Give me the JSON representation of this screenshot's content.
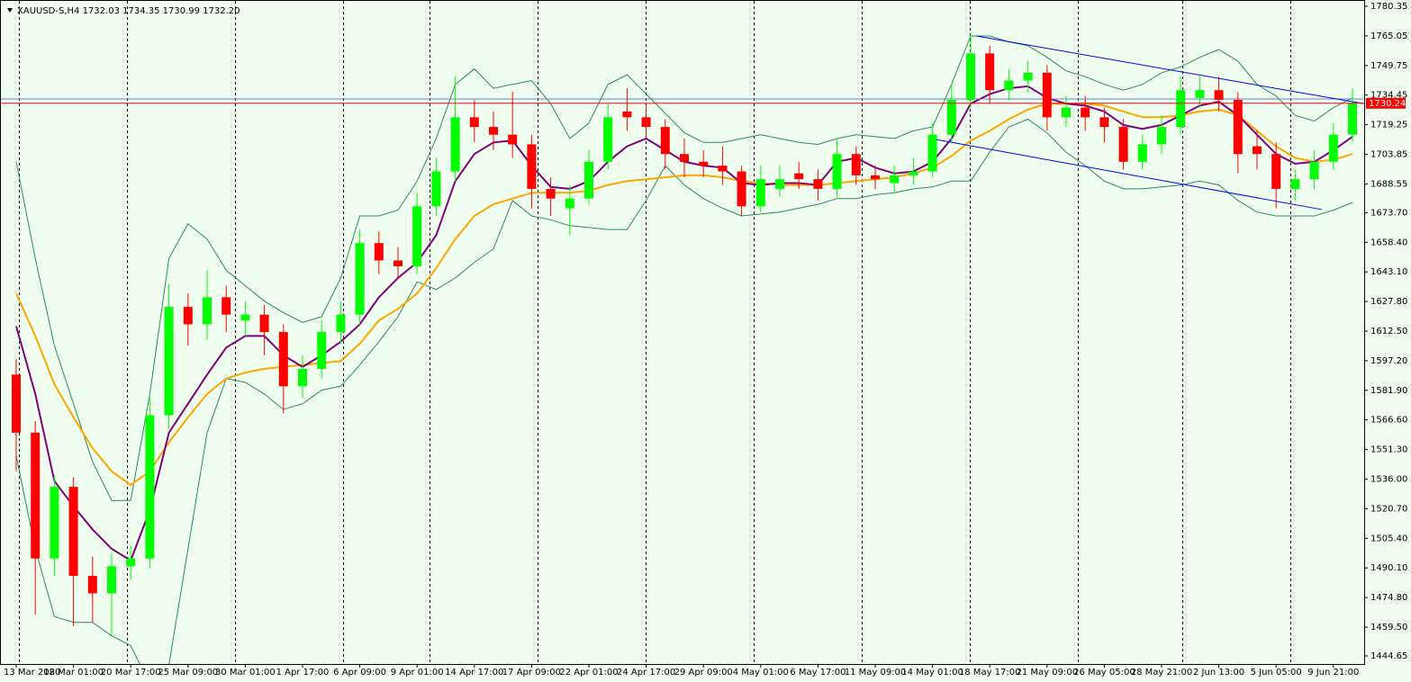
{
  "chart_data": {
    "type": "candlestick",
    "title": "XAUUSD-S,H4  1732.03 1734.35 1730.99 1732.20",
    "ylim": [
      1444.65,
      1780.35
    ],
    "yticks": [
      1780.35,
      1765.05,
      1749.75,
      1734.45,
      1719.25,
      1703.85,
      1688.55,
      {
        "value": 1673.7,
        "label": "1673.70"
      },
      {
        "value": 1658.4,
        "label": "1658.40"
      },
      {
        "value": 1643.1,
        "label": "1643.10"
      },
      {
        "value": 1627.8,
        "label": "1627.80"
      },
      {
        "value": 1612.5,
        "label": "1612.50"
      },
      {
        "value": 1597.2,
        "label": "1597.20"
      },
      {
        "value": 1581.9,
        "label": "1581.90"
      },
      {
        "value": 1566.6,
        "label": "1566.60"
      },
      {
        "value": 1551.3,
        "label": "1551.30"
      },
      {
        "value": 1536,
        "label": "1536.00"
      },
      {
        "value": 1520.7,
        "label": "1520.70"
      },
      {
        "value": 1505.4,
        "label": "1505.40"
      },
      {
        "value": 1490.1,
        "label": "1490.10"
      },
      {
        "value": 1474.8,
        "label": "1474.80"
      },
      {
        "value": 1459.5,
        "label": "1459.50"
      },
      1444.65
    ],
    "categories": [
      "13 Mar 2020",
      null,
      null,
      "18 Mar 01:00",
      null,
      null,
      "20 Mar 17:00",
      null,
      null,
      "25 Mar 09:00",
      null,
      null,
      "30 Mar 01:00",
      null,
      null,
      "1 Apr 17:00",
      null,
      null,
      "6 Apr 09:00",
      null,
      null,
      "9 Apr 01:00",
      null,
      null,
      "14 Apr 17:00",
      null,
      null,
      "17 Apr 09:00",
      null,
      null,
      "22 Apr 01:00",
      null,
      null,
      "24 Apr 17:00",
      null,
      null,
      "29 Apr 09:00",
      null,
      null,
      "4 May 01:00",
      null,
      null,
      "6 May 17:00",
      null,
      null,
      "11 May 09:00",
      null,
      null,
      "14 May 01:00",
      null,
      null,
      "18 May 17:00",
      null,
      null,
      "21 May 09:00",
      null,
      null,
      "26 May 05:00",
      null,
      null,
      "28 May 21:00",
      null,
      null,
      "2 Jun 13:00",
      null,
      null,
      "5 Jun 05:00",
      null,
      null,
      "9 Jun 21:00",
      null
    ],
    "up_color": "#00ff00",
    "down_color": "#ff0000",
    "open": [
      1590,
      1560,
      1495,
      1532,
      1486,
      1477,
      1491,
      1495,
      1569,
      1625,
      1616,
      1630,
      1618,
      1621,
      1612,
      1584,
      1593,
      1612,
      1621,
      1658,
      1649,
      1646,
      1677,
      1695,
      1723,
      1718,
      1714,
      1709,
      1686,
      1676,
      1681,
      1700,
      1726,
      1723,
      1718,
      1704,
      1700,
      1698,
      1695,
      1677,
      1686,
      1694,
      1691,
      1686,
      1704,
      1693,
      1689,
      1693,
      1695,
      1714,
      1732,
      1756,
      1737,
      1742,
      1746,
      1723,
      1728,
      1723,
      1718,
      1700,
      1709,
      1718,
      1733,
      1737,
      1732,
      1708,
      1704,
      1686,
      1691,
      1700,
      1714
    ],
    "high": [
      1598,
      1566,
      1538,
      1537,
      1496,
      1498,
      1502,
      1578,
      1637,
      1632,
      1644,
      1636,
      1628,
      1626,
      1616,
      1600,
      1618,
      1628,
      1665,
      1664,
      1656,
      1684,
      1702,
      1744,
      1732,
      1726,
      1736,
      1714,
      1692,
      1688,
      1706,
      1730,
      1738,
      1730,
      1722,
      1712,
      1706,
      1708,
      1698,
      1698,
      1698,
      1700,
      1696,
      1712,
      1708,
      1698,
      1698,
      1702,
      1720,
      1740,
      1766,
      1760,
      1748,
      1752,
      1750,
      1734,
      1734,
      1728,
      1722,
      1714,
      1724,
      1744,
      1744,
      1744,
      1736,
      1716,
      1710,
      1696,
      1706,
      1720,
      1738
    ],
    "low": [
      1540,
      1466,
      1486,
      1460,
      1462,
      1455,
      1484,
      1490,
      1562,
      1605,
      1608,
      1612,
      1610,
      1600,
      1570,
      1578,
      1588,
      1606,
      1616,
      1642,
      1640,
      1642,
      1672,
      1690,
      1710,
      1706,
      1702,
      1676,
      1672,
      1662,
      1678,
      1696,
      1716,
      1712,
      1696,
      1692,
      1692,
      1688,
      1672,
      1674,
      1682,
      1686,
      1680,
      1682,
      1688,
      1686,
      1684,
      1688,
      1692,
      1710,
      1728,
      1730,
      1732,
      1736,
      1716,
      1718,
      1716,
      1710,
      1696,
      1696,
      1704,
      1714,
      1728,
      1726,
      1694,
      1696,
      1676,
      1680,
      1686,
      1696,
      1710
    ],
    "close": [
      1560,
      1495,
      1532,
      1486,
      1477,
      1491,
      1495,
      1569,
      1625,
      1616,
      1630,
      1621,
      1621,
      1612,
      1584,
      1593,
      1612,
      1621,
      1658,
      1649,
      1646,
      1677,
      1695,
      1723,
      1718,
      1714,
      1709,
      1686,
      1681,
      1681,
      1700,
      1723,
      1723,
      1718,
      1704,
      1700,
      1698,
      1695,
      1677,
      1691,
      1691,
      1691,
      1686,
      1704,
      1693,
      1691,
      1693,
      1695,
      1714,
      1732,
      1756,
      1737,
      1742,
      1746,
      1723,
      1728,
      1723,
      1718,
      1700,
      1709,
      1718,
      1737,
      1737,
      1732,
      1704,
      1704,
      1686,
      1691,
      1700,
      1714,
      1730.24
    ],
    "lines": [
      {
        "color": "#2e8b57",
        "values": [
          1700,
          1650,
          1605,
          1575,
          1545,
          1525,
          1525,
          1580,
          1650,
          1668,
          1660,
          1644,
          1636,
          1628,
          1622,
          1617,
          1620,
          1640,
          1672,
          1672,
          1675,
          1690,
          1712,
          1740,
          1748,
          1738,
          1740,
          1742,
          1730,
          1712,
          1720,
          1740,
          1745,
          1735,
          1725,
          1715,
          1710,
          1710,
          1712,
          1714,
          1712,
          1710,
          1709,
          1712,
          1714,
          1713,
          1712,
          1716,
          1718,
          1740,
          1765,
          1765,
          1762,
          1760,
          1754,
          1747,
          1744,
          1740,
          1737,
          1740,
          1746,
          1749,
          1754,
          1758,
          1752,
          1740,
          1734,
          1724,
          1721,
          1728,
          1733
        ]
      },
      {
        "color": "#2e8b57",
        "values": [
          1548,
          1500,
          1465,
          1462,
          1462,
          1455,
          1450,
          1430,
          1440,
          1500,
          1560,
          1588,
          1586,
          1580,
          1572,
          1575,
          1582,
          1584,
          1595,
          1607,
          1620,
          1638,
          1634,
          1640,
          1648,
          1655,
          1680,
          1672,
          1670,
          1667,
          1666,
          1665,
          1665,
          1680,
          1698,
          1688,
          1681,
          1676,
          1672,
          1673,
          1674,
          1676,
          1678,
          1681,
          1681,
          1683,
          1684,
          1686,
          1687,
          1690,
          1690,
          1705,
          1718,
          1722,
          1715,
          1705,
          1698,
          1690,
          1686,
          1686,
          1687,
          1688,
          1690,
          1688,
          1680,
          1674,
          1672,
          1672,
          1672,
          1675,
          1679
        ]
      },
      {
        "color": "#ffa500",
        "values": [
          1632,
          1610,
          1585,
          1568,
          1552,
          1540,
          1533,
          1540,
          1555,
          1568,
          1580,
          1588,
          1591,
          1593,
          1594,
          1595,
          1596,
          1597,
          1606,
          1618,
          1624,
          1632,
          1645,
          1660,
          1672,
          1678,
          1681,
          1684,
          1684,
          1684,
          1685,
          1688,
          1690,
          1691,
          1692,
          1693,
          1693,
          1692,
          1690,
          1689,
          1688,
          1688,
          1688,
          1689,
          1690,
          1691,
          1692,
          1694,
          1697,
          1703,
          1711,
          1716,
          1722,
          1727,
          1730,
          1730,
          1730,
          1729,
          1726,
          1723,
          1723,
          1724,
          1726,
          1727,
          1724,
          1716,
          1708,
          1702,
          1700,
          1701,
          1704
        ]
      },
      {
        "color": "#800080",
        "values": [
          1615,
          1580,
          1535,
          1522,
          1510,
          1500,
          1494,
          1520,
          1560,
          1575,
          1590,
          1604,
          1610,
          1610,
          1600,
          1594,
          1600,
          1607,
          1616,
          1630,
          1640,
          1648,
          1662,
          1690,
          1704,
          1710,
          1711,
          1698,
          1687,
          1686,
          1690,
          1700,
          1708,
          1712,
          1706,
          1700,
          1698,
          1697,
          1689,
          1688,
          1689,
          1689,
          1688,
          1700,
          1702,
          1697,
          1694,
          1695,
          1700,
          1712,
          1730,
          1735,
          1738,
          1739,
          1733,
          1730,
          1729,
          1726,
          1719,
          1717,
          1719,
          1724,
          1729,
          1731,
          1724,
          1714,
          1704,
          1699,
          1700,
          1706,
          1713
        ]
      }
    ],
    "trendlines": [
      {
        "color": "#0000ff",
        "x": [
          50.3,
          70.6
        ],
        "values": [
          1765,
          1730
        ]
      },
      {
        "color": "#0000ff",
        "x": [
          48.2,
          68.4
        ],
        "values": [
          1711.5,
          1675.3
        ]
      }
    ],
    "hlines": [
      {
        "color": "#6a7fd0",
        "value": 1732.45
      }
    ],
    "current_price": 1730.24,
    "current_price_color": "#ff0000"
  }
}
